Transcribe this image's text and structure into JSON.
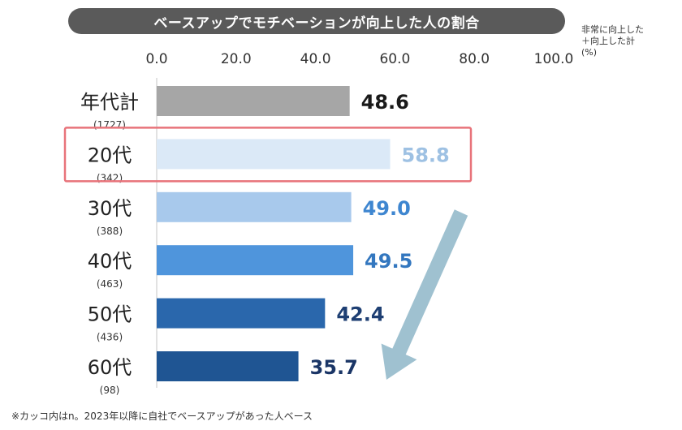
{
  "title": "ベースアップでモチベーションが向上した人の割合",
  "unit_note": "非常に向上した\n＋向上した計\n(%)",
  "footnote": "※カッコ内はn。2023年以降に自社でベースアップがあった人ベース",
  "colors": {
    "title_bg": "#5a5a5a",
    "highlight_border": "#e8737a",
    "arrow": "#9fc1d0"
  },
  "highlight_category": "20代",
  "chart_data": {
    "type": "bar",
    "orientation": "horizontal",
    "title": "ベースアップでモチベーションが向上した人の割合",
    "x_ticks": [
      "0.0",
      "20.0",
      "40.0",
      "60.0",
      "80.0",
      "100.0"
    ],
    "xlim": [
      0,
      100
    ],
    "categories": [
      "年代計",
      "20代",
      "30代",
      "40代",
      "50代",
      "60代"
    ],
    "n": [
      "(1727)",
      "(342)",
      "(388)",
      "(463)",
      "(436)",
      "(98)"
    ],
    "values": [
      48.6,
      58.8,
      49.0,
      49.5,
      42.4,
      35.7
    ],
    "value_labels": [
      "48.6",
      "58.8",
      "49.0",
      "49.5",
      "42.4",
      "35.7"
    ],
    "bar_colors": [
      "#a6a6a6",
      "#dbe9f7",
      "#a8c9ec",
      "#4f95dc",
      "#2a67ac",
      "#1f5593"
    ],
    "label_colors": [
      "#1a1a1a",
      "#9ec1e3",
      "#3e86d0",
      "#3377bf",
      "#1e3f73",
      "#1a3566"
    ],
    "grid": false
  }
}
